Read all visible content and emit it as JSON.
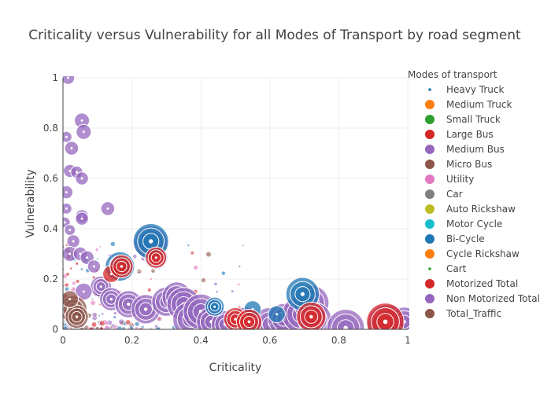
{
  "chart_data": {
    "type": "scatter",
    "title": "Criticality versus Vulnerability for all Modes of Transport by road segment",
    "xlabel": "Criticality",
    "ylabel": "Vulnerability",
    "xlim": [
      0,
      1
    ],
    "ylim": [
      0,
      1
    ],
    "x_ticks": [
      "0",
      "0.2",
      "0.4",
      "0.6",
      "0.8",
      "1"
    ],
    "y_ticks": [
      "0",
      "0.2",
      "0.4",
      "0.6",
      "0.8",
      "1"
    ],
    "grid": true,
    "legend": {
      "title": "Modes of transport",
      "placement": "right",
      "items": [
        {
          "name": "Heavy Truck",
          "color": "#1f77b4",
          "marker": "small"
        },
        {
          "name": "Medium Truck",
          "color": "#ff7f0e",
          "marker": "large"
        },
        {
          "name": "Small Truck",
          "color": "#2ca02c",
          "marker": "large"
        },
        {
          "name": "Large Bus",
          "color": "#d62728",
          "marker": "large"
        },
        {
          "name": "Medium Bus",
          "color": "#9467bd",
          "marker": "large"
        },
        {
          "name": "Micro Bus",
          "color": "#8c564b",
          "marker": "large"
        },
        {
          "name": "Utility",
          "color": "#e377c2",
          "marker": "large"
        },
        {
          "name": "Car",
          "color": "#7f7f7f",
          "marker": "large"
        },
        {
          "name": "Auto Rickshaw",
          "color": "#bcbd22",
          "marker": "large"
        },
        {
          "name": "Motor Cycle",
          "color": "#17becf",
          "marker": "large"
        },
        {
          "name": "Bi-Cycle",
          "color": "#1f77b4",
          "marker": "large"
        },
        {
          "name": "Cycle Rickshaw",
          "color": "#ff7f0e",
          "marker": "large"
        },
        {
          "name": "Cart",
          "color": "#2ca02c",
          "marker": "small"
        },
        {
          "name": "Motorized Total",
          "color": "#d62728",
          "marker": "large"
        },
        {
          "name": "Non Motorized Total",
          "color": "#9467bd",
          "marker": "large"
        },
        {
          "name": "Total_Traffic",
          "color": "#8c564b",
          "marker": "large"
        }
      ]
    },
    "series": [
      {
        "name": "Medium Bus",
        "color": "#9467bd",
        "points": [
          {
            "x": 0.015,
            "y": 1.0,
            "size": 0.2
          },
          {
            "x": 0.055,
            "y": 0.83,
            "size": 0.25
          },
          {
            "x": 0.06,
            "y": 0.785,
            "size": 0.25
          },
          {
            "x": 0.01,
            "y": 0.765,
            "size": 0.15
          },
          {
            "x": 0.025,
            "y": 0.72,
            "size": 0.22
          },
          {
            "x": 0.02,
            "y": 0.63,
            "size": 0.2
          },
          {
            "x": 0.04,
            "y": 0.625,
            "size": 0.18
          },
          {
            "x": 0.055,
            "y": 0.6,
            "size": 0.2
          },
          {
            "x": 0.01,
            "y": 0.545,
            "size": 0.2
          },
          {
            "x": 0.13,
            "y": 0.48,
            "size": 0.22
          },
          {
            "x": 0.01,
            "y": 0.48,
            "size": 0.15
          },
          {
            "x": 0.055,
            "y": 0.45,
            "size": 0.2
          },
          {
            "x": 0.055,
            "y": 0.44,
            "size": 0.2
          },
          {
            "x": 0.005,
            "y": 0.425,
            "size": 0.15
          },
          {
            "x": 0.02,
            "y": 0.395,
            "size": 0.15
          },
          {
            "x": 0.03,
            "y": 0.35,
            "size": 0.2
          },
          {
            "x": 0.02,
            "y": 0.3,
            "size": 0.25
          },
          {
            "x": 0.05,
            "y": 0.3,
            "size": 0.22
          },
          {
            "x": 0.07,
            "y": 0.285,
            "size": 0.22
          },
          {
            "x": 0.255,
            "y": 0.345,
            "size": 0.7
          },
          {
            "x": 0.27,
            "y": 0.285,
            "size": 0.45
          },
          {
            "x": 0.09,
            "y": 0.25,
            "size": 0.2
          },
          {
            "x": 0.11,
            "y": 0.17,
            "size": 0.4
          },
          {
            "x": 0.06,
            "y": 0.15,
            "size": 0.3
          },
          {
            "x": 0.14,
            "y": 0.12,
            "size": 0.45
          },
          {
            "x": 0.19,
            "y": 0.1,
            "size": 0.55
          },
          {
            "x": 0.24,
            "y": 0.08,
            "size": 0.6
          },
          {
            "x": 0.3,
            "y": 0.11,
            "size": 0.6
          },
          {
            "x": 0.33,
            "y": 0.13,
            "size": 0.6
          },
          {
            "x": 0.35,
            "y": 0.1,
            "size": 0.7
          },
          {
            "x": 0.37,
            "y": 0.04,
            "size": 0.75
          },
          {
            "x": 0.4,
            "y": 0.07,
            "size": 0.75
          },
          {
            "x": 0.43,
            "y": 0.03,
            "size": 0.6
          },
          {
            "x": 0.47,
            "y": 0.02,
            "size": 0.55
          },
          {
            "x": 0.53,
            "y": 0.03,
            "size": 0.6
          },
          {
            "x": 0.6,
            "y": 0.02,
            "size": 0.7
          },
          {
            "x": 0.64,
            "y": 0.04,
            "size": 0.65
          },
          {
            "x": 0.69,
            "y": 0.06,
            "size": 0.8
          },
          {
            "x": 0.72,
            "y": 0.105,
            "size": 0.75
          },
          {
            "x": 0.73,
            "y": 0.04,
            "size": 0.7
          },
          {
            "x": 0.82,
            "y": 0.005,
            "size": 0.8
          },
          {
            "x": 0.94,
            "y": 0.02,
            "size": 0.85
          },
          {
            "x": 0.99,
            "y": 0.03,
            "size": 0.6
          }
        ]
      },
      {
        "name": "Bi-Cycle",
        "color": "#1f77b4",
        "points": [
          {
            "x": 0.165,
            "y": 0.25,
            "size": 0.6
          },
          {
            "x": 0.255,
            "y": 0.35,
            "size": 0.75
          },
          {
            "x": 0.44,
            "y": 0.09,
            "size": 0.35
          },
          {
            "x": 0.55,
            "y": 0.08,
            "size": 0.3
          },
          {
            "x": 0.695,
            "y": 0.14,
            "size": 0.7
          },
          {
            "x": 0.62,
            "y": 0.06,
            "size": 0.3
          }
        ]
      },
      {
        "name": "Motorized Total",
        "color": "#d62728",
        "points": [
          {
            "x": 0.14,
            "y": 0.22,
            "size": 0.3
          },
          {
            "x": 0.17,
            "y": 0.25,
            "size": 0.45
          },
          {
            "x": 0.27,
            "y": 0.285,
            "size": 0.4
          },
          {
            "x": 0.5,
            "y": 0.04,
            "size": 0.45
          },
          {
            "x": 0.54,
            "y": 0.03,
            "size": 0.5
          },
          {
            "x": 0.72,
            "y": 0.05,
            "size": 0.6
          },
          {
            "x": 0.935,
            "y": 0.03,
            "size": 0.8
          }
        ]
      },
      {
        "name": "Total_Traffic",
        "color": "#8c564b",
        "points": [
          {
            "x": 0.03,
            "y": 0.08,
            "size": 0.55
          },
          {
            "x": 0.04,
            "y": 0.05,
            "size": 0.45
          },
          {
            "x": 0.02,
            "y": 0.12,
            "size": 0.3
          }
        ]
      }
    ]
  }
}
